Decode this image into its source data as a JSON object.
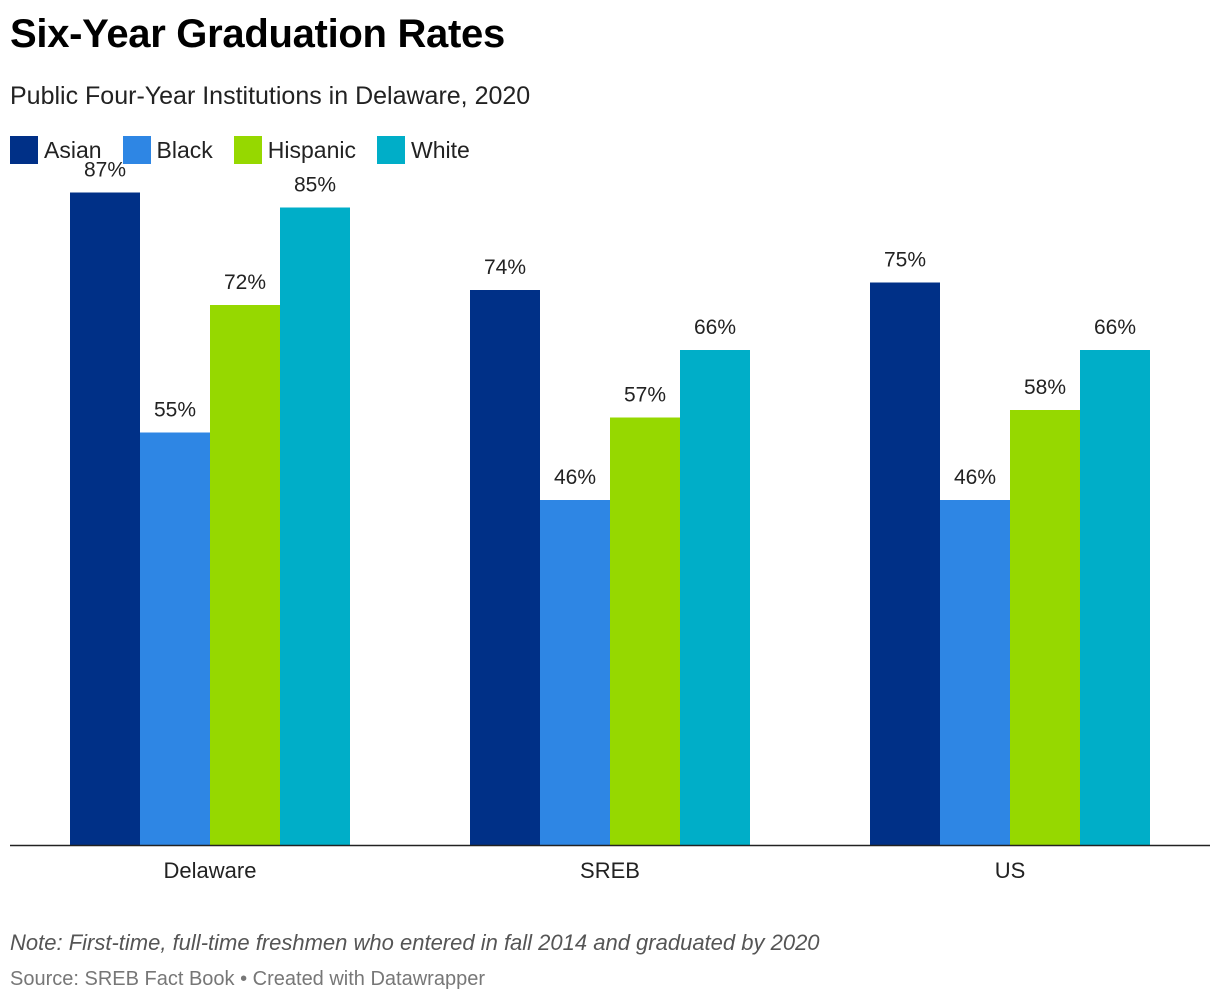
{
  "title": "Six-Year Graduation Rates",
  "subtitle": "Public Four-Year Institutions in Delaware, 2020",
  "note": "Note: First-time, full-time freshmen who entered in fall 2014 and graduated by 2020",
  "source": "Source: SREB Fact Book • Created with Datawrapper",
  "colors": {
    "Asian": "#003087",
    "Black": "#2e86e4",
    "Hispanic": "#96d800",
    "White": "#00aec8"
  },
  "chart_data": {
    "type": "bar",
    "categories": [
      "Delaware",
      "SREB",
      "US"
    ],
    "series": [
      {
        "name": "Asian",
        "values": [
          87,
          74,
          75
        ]
      },
      {
        "name": "Black",
        "values": [
          55,
          46,
          46
        ]
      },
      {
        "name": "Hispanic",
        "values": [
          72,
          57,
          58
        ]
      },
      {
        "name": "White",
        "values": [
          85,
          66,
          66
        ]
      }
    ],
    "value_suffix": "%",
    "ylim": [
      0,
      100
    ],
    "grid": false,
    "legend": "top-left",
    "data_labels": true
  }
}
